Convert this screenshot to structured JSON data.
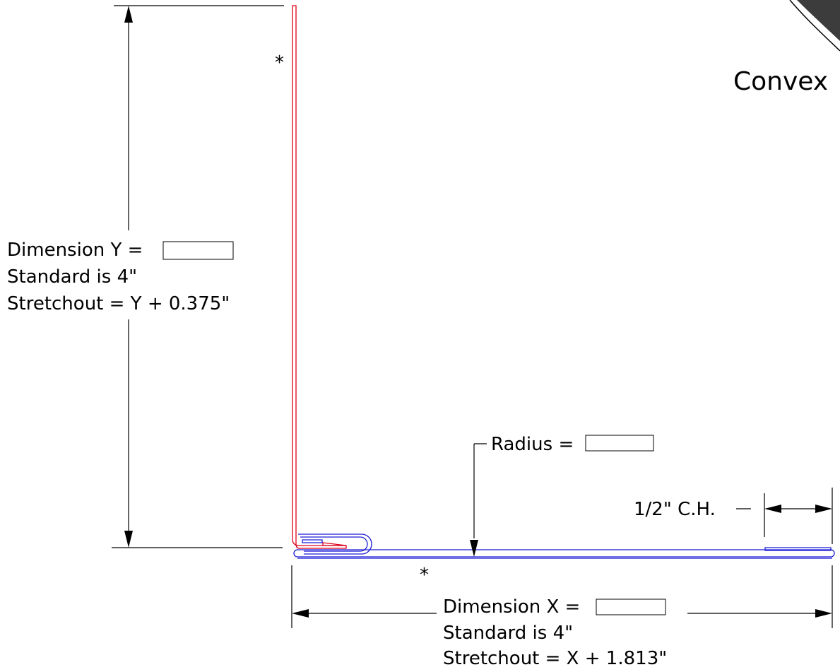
{
  "title": "Convex",
  "asterisk": "*",
  "dimension_y": {
    "label": "Dimension Y =",
    "value": "",
    "standard": "Standard is 4\"",
    "stretchout": "Stretchout = Y + 0.375\""
  },
  "dimension_x": {
    "label": "Dimension X =",
    "value": "",
    "standard": "Standard is 4\"",
    "stretchout": "Stretchout = X + 1.813\""
  },
  "radius": {
    "label": "Radius =",
    "value": ""
  },
  "cleat_hem": {
    "label": "1/2\" C.H."
  },
  "colors": {
    "vertical_leg": "#e0001b",
    "horizontal_leg": "#1a1ad6",
    "corner_shading": "#3c3c3c"
  }
}
